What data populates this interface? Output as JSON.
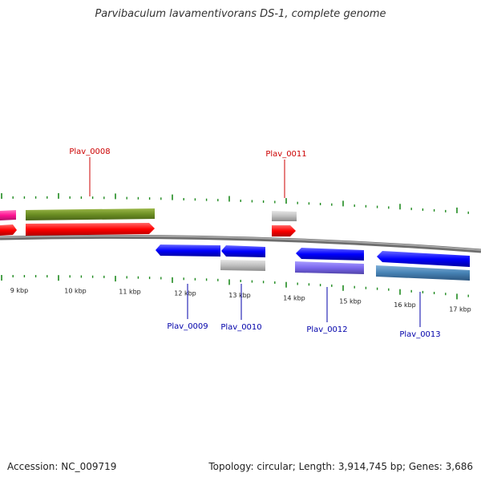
{
  "title": "Parvibaculum lavamentivorans DS-1, complete genome",
  "footer": {
    "accession": "Accession: NC_009719",
    "summary": "Topology: circular; Length: 3,914,745 bp; Genes: 3,686"
  },
  "colors": {
    "forward_label": "#cc0000",
    "reverse_label": "#0000aa",
    "tick": "#1f8a1f",
    "backbone": "#8a8a8a",
    "forward_cds": "#ff1a1a",
    "reverse_cds": "#1a1aff",
    "cog_olive": "#6b8e23",
    "cog_magenta": "#ff1493",
    "cog_grey": "#c0c0c0",
    "cog_slate": "#7b68ee",
    "cog_steel": "#4682b4"
  },
  "scale_labels": [
    "9 kbp",
    "10 kbp",
    "11 kbp",
    "12 kbp",
    "13 kbp",
    "14 kbp",
    "15 kbp",
    "16 kbp",
    "17 kbp"
  ],
  "forward_genes": [
    {
      "label": "Plav_0008"
    },
    {
      "label": "Plav_0011"
    }
  ],
  "reverse_genes": [
    {
      "label": "Plav_0009"
    },
    {
      "label": "Plav_0010"
    },
    {
      "label": "Plav_0012"
    },
    {
      "label": "Plav_0013"
    }
  ]
}
